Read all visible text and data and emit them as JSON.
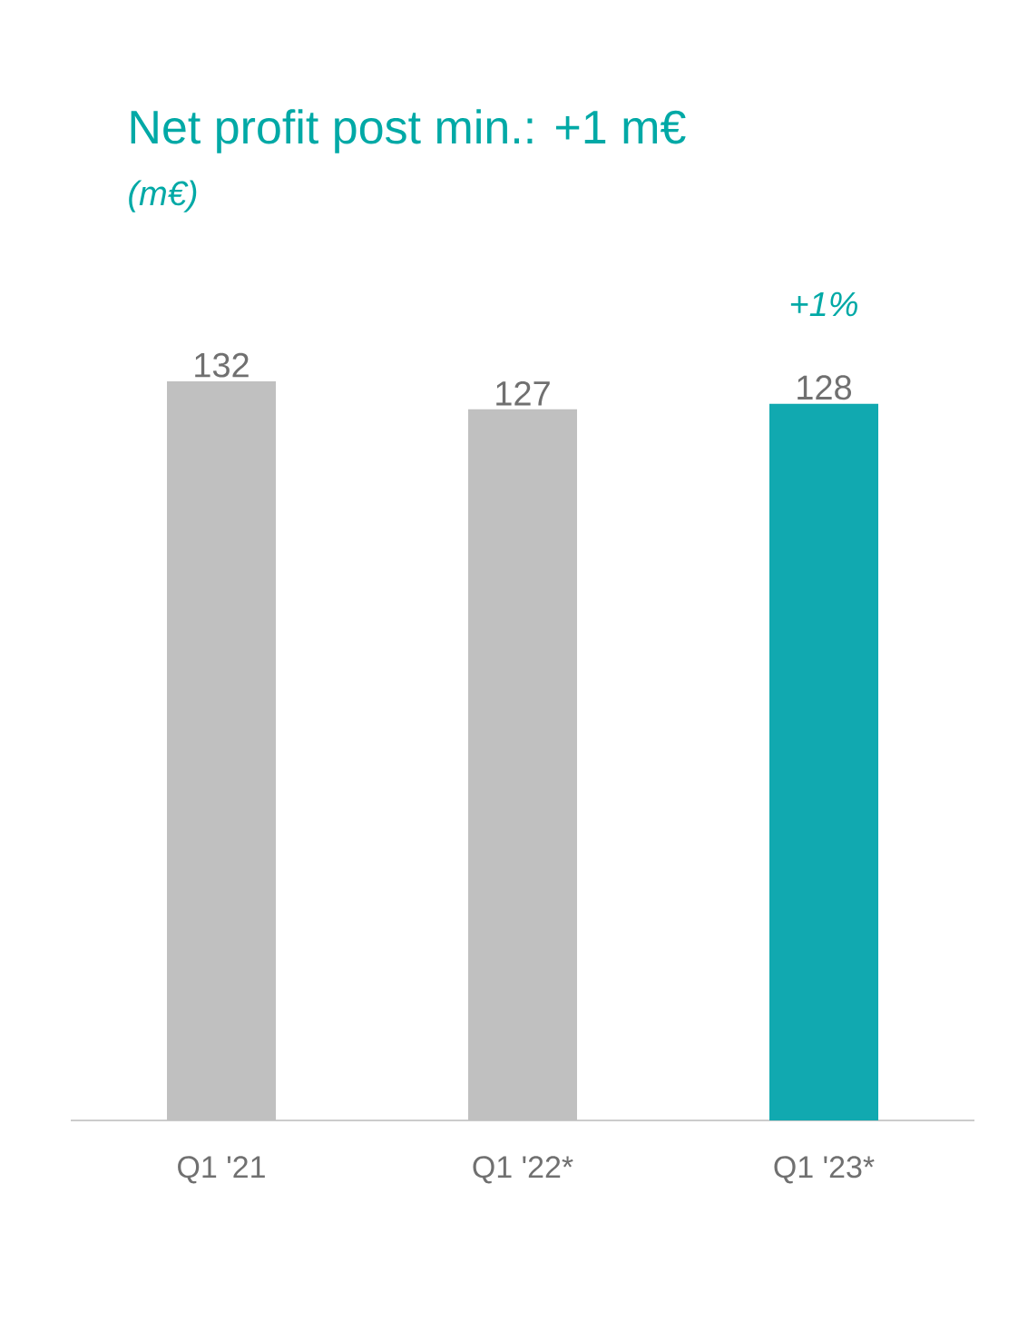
{
  "chart_data": {
    "type": "bar",
    "title": "Net profit post min.: +1 m€",
    "subtitle": "(m€)",
    "categories": [
      "Q1 '21",
      "Q1 '22*",
      "Q1 '23*"
    ],
    "values": [
      132,
      127,
      128
    ],
    "colors": [
      "#c0c0c0",
      "#c0c0c0",
      "#11a9b0"
    ],
    "data_labels": true,
    "annotations": [
      "+1%"
    ]
  }
}
